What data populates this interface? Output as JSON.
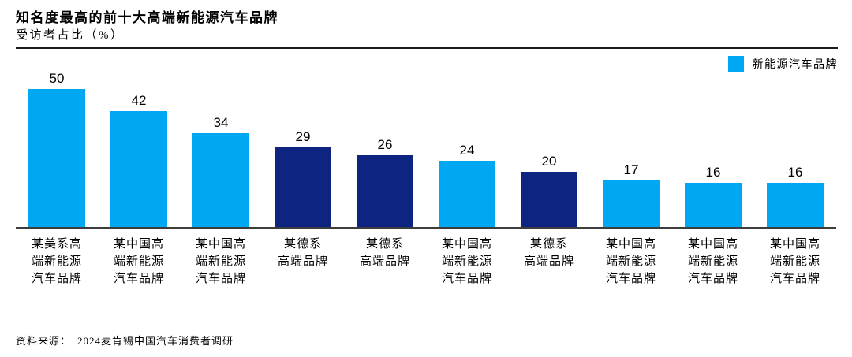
{
  "header": {
    "title": "知名度最高的前十大高端新能源汽车品牌",
    "subtitle": "受访者占比（%）"
  },
  "legend": {
    "label": "新能源汽车品牌",
    "color": "#00A8F2"
  },
  "footer": {
    "label": "资料来源：",
    "text": "2024麦肯锡中国汽车消费者调研"
  },
  "colors": {
    "light_blue": "#00A8F2",
    "dark_blue": "#0D2480",
    "axis_line": "#3d3d3d",
    "header_rule": "#1a1a1a"
  },
  "chart_data": {
    "type": "bar",
    "title": "知名度最高的前十大高端新能源汽车品牌",
    "ylabel": "受访者占比（%）",
    "xlabel": "",
    "categories": [
      "某美系高端新能源汽车品牌",
      "某中国高端新能源汽车品牌",
      "某中国高端新能源汽车品牌",
      "某德系高端品牌",
      "某德系高端品牌",
      "某中国高端新能源汽车品牌",
      "某德系高端品牌",
      "某中国高端新能源汽车品牌",
      "某中国高端新能源汽车品牌",
      "某中国高端新能源汽车品牌"
    ],
    "categories_wrapped": [
      "某美系高\n端新能源\n汽车品牌",
      "某中国高\n端新能源\n汽车品牌",
      "某中国高\n端新能源\n汽车品牌",
      "某德系\n高端品牌",
      "某德系\n高端品牌",
      "某中国高\n端新能源\n汽车品牌",
      "某德系\n高端品牌",
      "某中国高\n端新能源\n汽车品牌",
      "某中国高\n端新能源\n汽车品牌",
      "某中国高\n端新能源\n汽车品牌"
    ],
    "values": [
      50,
      42,
      34,
      29,
      26,
      24,
      20,
      17,
      16,
      16
    ],
    "bar_colors": [
      "#00A8F2",
      "#00A8F2",
      "#00A8F2",
      "#0D2480",
      "#0D2480",
      "#00A8F2",
      "#0D2480",
      "#00A8F2",
      "#00A8F2",
      "#00A8F2"
    ],
    "data_labels": true,
    "grid": false,
    "ylim": [
      0,
      55
    ],
    "legend_entries": [
      "新能源汽车品牌"
    ],
    "legend_position": "top-right"
  }
}
